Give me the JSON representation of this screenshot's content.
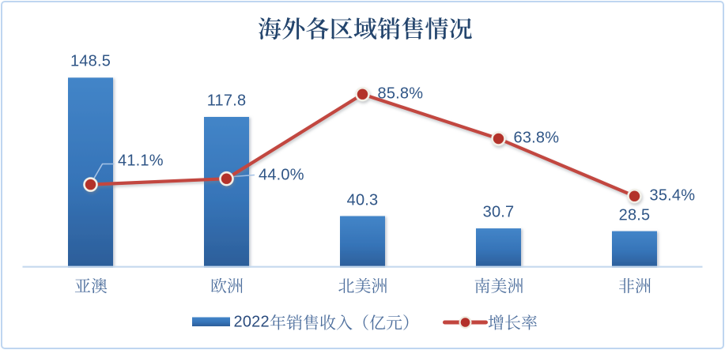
{
  "chart": {
    "title": "海外各区域销售情况",
    "background": "#FFFFFF",
    "border_color": "#BFD6F0"
  },
  "chart_data": {
    "type": "bar+line",
    "title": "海外各区域销售情况",
    "categories": [
      "亚澳",
      "欧洲",
      "北美洲",
      "南美洲",
      "非洲"
    ],
    "series": [
      {
        "name": "2022年销售收入（亿元）",
        "type": "bar",
        "axis": "primary",
        "values": [
          148.5,
          117.8,
          40.3,
          30.7,
          28.5
        ],
        "labels": [
          "148.5",
          "117.8",
          "40.3",
          "30.7",
          "28.5"
        ],
        "color": "#3A78C0"
      },
      {
        "name": "增长率",
        "type": "line",
        "axis": "secondary",
        "values": [
          41.1,
          44.0,
          85.8,
          63.8,
          35.4
        ],
        "labels": [
          "41.1%",
          "44.0%",
          "85.8%",
          "63.8%",
          "35.4%"
        ],
        "color": "#C2463F"
      }
    ],
    "legend": [
      "2022年销售收入（亿元）",
      "增长率"
    ],
    "legend_position": "bottom",
    "primary_axis": {
      "min": 0,
      "max": 160,
      "visible": false
    },
    "secondary_axis": {
      "min": 0,
      "max": 100,
      "unit": "%",
      "visible": false
    },
    "grid": false
  },
  "colors": {
    "title_text": "#24456D",
    "value_label_text": "#2F5586",
    "category_text": "#4E6F9D",
    "legend_cjk_text": "#4E6F9D",
    "legend_digit_text": "#2B4C7E",
    "bar_top": "#4385C8",
    "bar_bottom": "#2C5E99",
    "line": "#C2463F",
    "marker_fill": "#B3302A",
    "marker_ring": "#F2EFE7",
    "leader": "#A6C3E6",
    "axis_line": "#C5D9EE",
    "border": "#BFD6F0"
  }
}
